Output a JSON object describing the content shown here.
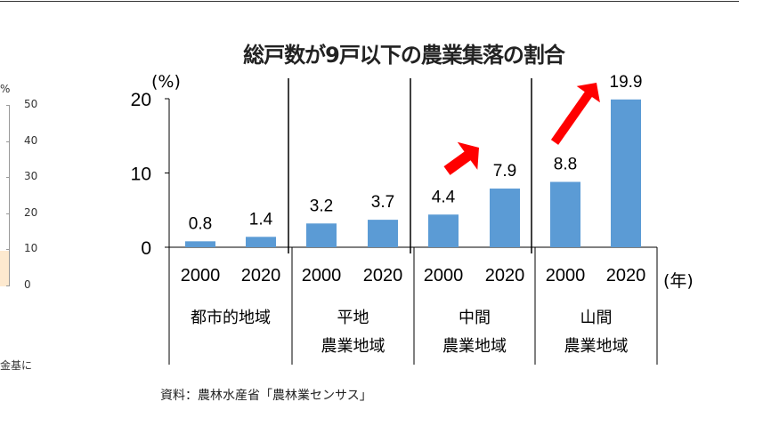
{
  "left_fragment": {
    "unit": "%",
    "ticks": [
      "50",
      "40",
      "30",
      "20",
      "10",
      "0"
    ],
    "note": "金基に"
  },
  "chart_data": {
    "type": "bar",
    "title": "総戸数が9戸以下の農業集落の割合",
    "ylabel": "(%)",
    "xlabel": "(年)",
    "ylim": [
      0,
      20
    ],
    "yticks": [
      "0",
      "10",
      "20"
    ],
    "groups": [
      {
        "label_lines": [
          "都市的地域"
        ],
        "years": [
          "2000",
          "2020"
        ],
        "values": [
          0.8,
          1.4
        ],
        "labels": [
          "0.8",
          "1.4"
        ]
      },
      {
        "label_lines": [
          "平地",
          "農業地域"
        ],
        "years": [
          "2000",
          "2020"
        ],
        "values": [
          3.2,
          3.7
        ],
        "labels": [
          "3.2",
          "3.7"
        ]
      },
      {
        "label_lines": [
          "中間",
          "農業地域"
        ],
        "years": [
          "2000",
          "2020"
        ],
        "values": [
          4.4,
          7.9
        ],
        "labels": [
          "4.4",
          "7.9"
        ]
      },
      {
        "label_lines": [
          "山間",
          "農業地域"
        ],
        "years": [
          "2000",
          "2020"
        ],
        "values": [
          8.8,
          19.9
        ],
        "labels": [
          "8.8",
          "19.9"
        ]
      }
    ],
    "bar_color": "#5b9bd5",
    "arrow_color": "#ff0000",
    "grid": false
  },
  "source": "資料：農林水産省「農林業センサス」"
}
